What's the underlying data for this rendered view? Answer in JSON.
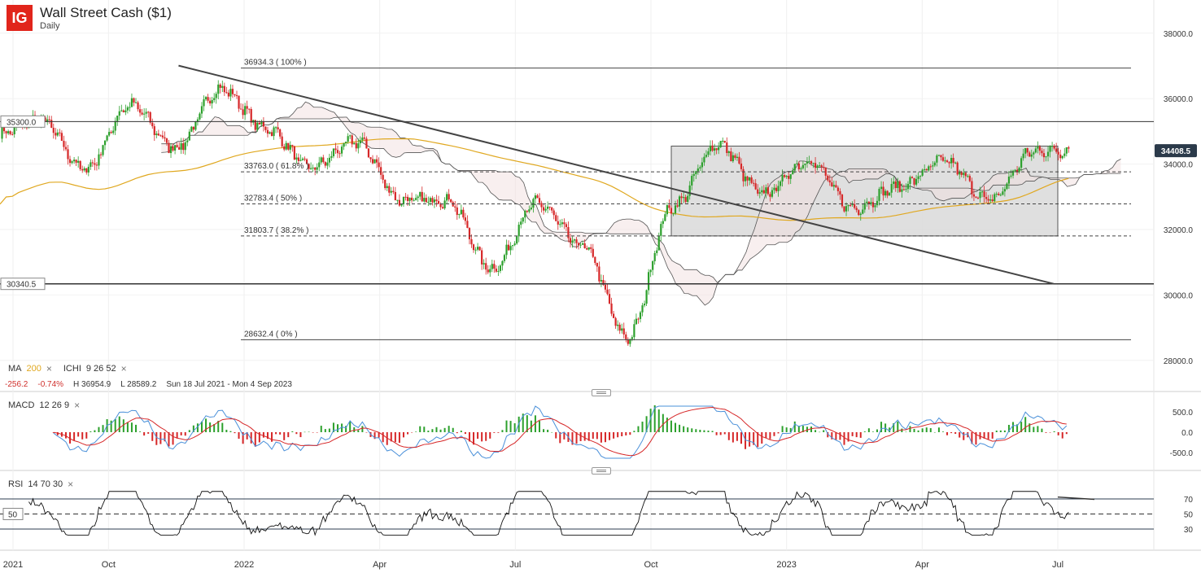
{
  "header": {
    "logo": "IG",
    "title": "Wall Street Cash ($1)",
    "timeframe": "Daily"
  },
  "indicators": {
    "ma": {
      "name": "MA",
      "period": "200"
    },
    "ichimoku": {
      "name": "ICHI",
      "params": "9  26  52"
    },
    "macd": {
      "name": "MACD",
      "params": "12  26  9"
    },
    "rsi": {
      "name": "RSI",
      "params": "14  70  30"
    },
    "close_icon": "×"
  },
  "stats": {
    "change": "-256.2",
    "change_pct": "-0.74%",
    "high": "H 36954.9",
    "low": "L 28589.2",
    "range": "Sun 18 Jul 2021 - Mon 4 Sep 2023"
  },
  "colors": {
    "up": "#2ca02c",
    "down": "#d62728",
    "ma": "#e0a820",
    "macd_line": "#4a90d9",
    "signal_line": "#d62728",
    "trendline": "#444444",
    "box_fill": "#d9d9d9",
    "price_badge": "#2b3a4a"
  },
  "chart_data": [
    {
      "type": "candlestick",
      "title": "Wall Street Cash ($1)",
      "x_labels": [
        "2021",
        "Oct",
        "2022",
        "Apr",
        "Jul",
        "Oct",
        "2023",
        "Apr",
        "Jul"
      ],
      "y_ticks": [
        28000,
        30000,
        32000,
        34000,
        36000,
        38000
      ],
      "y_tick_labels": [
        "28000.0",
        "30000.0",
        "32000.0",
        "34000.0",
        "36000.0",
        "38000.0"
      ],
      "ylim": [
        27600,
        38600
      ],
      "last_price": "34408.5",
      "last_value": 34408.5,
      "horizontal_levels": [
        {
          "label": "35300.0",
          "value": 35300
        },
        {
          "label": "30340.5",
          "value": 30340.5
        }
      ],
      "fibonacci": [
        {
          "label": "36934.3 ( 100% )",
          "value": 36934.3
        },
        {
          "label": "33763.0 ( 61.8% )",
          "value": 33763
        },
        {
          "label": "32783.4 ( 50% )",
          "value": 32783.4
        },
        {
          "label": "31803.7 ( 38.2% )",
          "value": 31803.7
        },
        {
          "label": "28632.4 ( 0% )",
          "value": 28632.4
        }
      ],
      "range_box": {
        "from": "2022-10",
        "to": "2023-07",
        "low": 31803.7,
        "high": 34550
      },
      "trendline": {
        "start": {
          "date": "2021-12",
          "value": 36934.3
        },
        "end": {
          "date": "2023-07",
          "value": 30340.5
        }
      },
      "monthly_closes": [
        {
          "date": "2021-07",
          "value": 34900
        },
        {
          "date": "2021-08",
          "value": 35350
        },
        {
          "date": "2021-09",
          "value": 33850
        },
        {
          "date": "2021-10",
          "value": 35800
        },
        {
          "date": "2021-11",
          "value": 34500
        },
        {
          "date": "2021-12",
          "value": 36300
        },
        {
          "date": "2022-01",
          "value": 35100
        },
        {
          "date": "2022-02",
          "value": 33900
        },
        {
          "date": "2022-03",
          "value": 34700
        },
        {
          "date": "2022-04",
          "value": 32900
        },
        {
          "date": "2022-05",
          "value": 32900
        },
        {
          "date": "2022-06",
          "value": 30800
        },
        {
          "date": "2022-07",
          "value": 32800
        },
        {
          "date": "2022-08",
          "value": 31500
        },
        {
          "date": "2022-09",
          "value": 28700
        },
        {
          "date": "2022-10",
          "value": 32700
        },
        {
          "date": "2022-11",
          "value": 34600
        },
        {
          "date": "2022-12",
          "value": 33100
        },
        {
          "date": "2023-01",
          "value": 34100
        },
        {
          "date": "2023-02",
          "value": 32650
        },
        {
          "date": "2023-03",
          "value": 33300
        },
        {
          "date": "2023-04",
          "value": 34100
        },
        {
          "date": "2023-05",
          "value": 32900
        },
        {
          "date": "2023-06",
          "value": 34400
        },
        {
          "date": "2023-07",
          "value": 34408.5
        }
      ]
    },
    {
      "type": "line",
      "title": "MACD  12  26  9",
      "y_ticks": [
        -500,
        0,
        500
      ],
      "y_tick_labels": [
        "-500.0",
        "0.0",
        "500.0"
      ]
    },
    {
      "type": "line",
      "title": "RSI  14  70  30",
      "y_ticks": [
        30,
        50,
        70
      ],
      "y_tick_labels": [
        "30",
        "50",
        "70"
      ],
      "ylim": [
        0,
        100
      ]
    }
  ]
}
